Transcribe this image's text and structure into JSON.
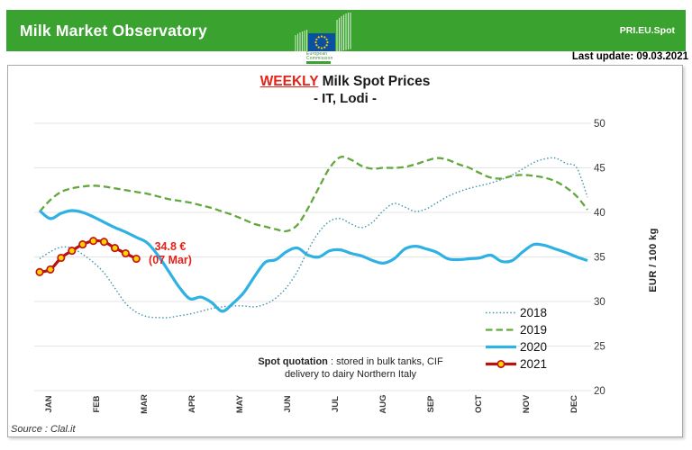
{
  "header": {
    "title": "Milk Market Observatory",
    "code_label": "PRI.EU.Spot",
    "last_update": "Last update: 09.03.2021",
    "logo": {
      "caption_line1": "European",
      "caption_line2": "Commission"
    }
  },
  "chart": {
    "title_highlight": "WEEKLY",
    "title_rest": " Milk Spot Prices",
    "subtitle": "- IT, Lodi -",
    "note": {
      "bold": "Spot quotation",
      "rest": " : stored in bulk tanks, CIF",
      "line2": "delivery to dairy Northern Italy"
    },
    "annotation": {
      "line1": "34.8 €",
      "line2": "(07 Mar)"
    },
    "y_axis_title": "EUR / 100 kg",
    "source": "Source : Clal.it"
  },
  "colors": {
    "header_bg": "#3aa32f",
    "title_red": "#e2231a",
    "annotation_red": "#e2231a",
    "grid": "#e4e4e4",
    "axis_text": "#383838",
    "eu_blue": "#0a50a1",
    "eu_star_yellow": "#ffcc00"
  },
  "chart_data": {
    "type": "line",
    "title": "WEEKLY Milk Spot Prices",
    "subtitle": "- IT, Lodi -",
    "unit": "EUR / 100 kg",
    "x_granularity": "weekly",
    "x_months": [
      "JAN",
      "FEB",
      "MAR",
      "APR",
      "MAY",
      "JUN",
      "JUL",
      "AUG",
      "SEP",
      "OCT",
      "NOV",
      "DEC"
    ],
    "ylim": [
      20,
      50
    ],
    "yticks": [
      20,
      25,
      30,
      35,
      40,
      45,
      50
    ],
    "grid": "horizontal",
    "legend_position": "middle-right",
    "series": [
      {
        "name": "2018",
        "style": "dotted",
        "color": "#4392ad",
        "values": [
          34.8,
          35.6,
          36.1,
          36.0,
          35.3,
          34.4,
          33.2,
          31.5,
          29.8,
          28.8,
          28.3,
          28.2,
          28.2,
          28.4,
          28.6,
          28.9,
          29.2,
          29.4,
          29.5,
          29.5,
          29.4,
          29.7,
          30.4,
          31.6,
          33.4,
          35.8,
          37.8,
          39.0,
          39.3,
          38.7,
          38.3,
          38.9,
          40.2,
          41.0,
          40.6,
          40.1,
          40.4,
          41.1,
          41.8,
          42.3,
          42.7,
          43.0,
          43.3,
          43.7,
          44.2,
          44.9,
          45.6,
          46.0,
          46.1,
          45.5,
          45.0,
          41.7
        ]
      },
      {
        "name": "2019",
        "style": "dashed",
        "color": "#63a83f",
        "values": [
          40.1,
          41.4,
          42.3,
          42.7,
          42.9,
          43.0,
          42.9,
          42.7,
          42.5,
          42.3,
          42.1,
          41.8,
          41.5,
          41.3,
          41.1,
          40.8,
          40.5,
          40.1,
          39.7,
          39.2,
          38.7,
          38.4,
          38.1,
          37.9,
          38.6,
          40.5,
          42.8,
          45.0,
          46.2,
          45.9,
          45.2,
          44.9,
          45.0,
          45.0,
          45.1,
          45.4,
          45.8,
          46.1,
          45.9,
          45.4,
          45.0,
          44.4,
          43.9,
          43.8,
          44.1,
          44.2,
          44.1,
          43.9,
          43.5,
          42.8,
          41.8,
          40.3
        ]
      },
      {
        "name": "2020",
        "style": "solid",
        "color": "#2fb1e3",
        "values": [
          40.2,
          39.3,
          39.9,
          40.2,
          40.0,
          39.5,
          38.9,
          38.3,
          37.8,
          37.2,
          36.6,
          35.2,
          33.4,
          31.6,
          30.3,
          30.5,
          29.9,
          28.9,
          29.8,
          31.0,
          32.8,
          34.4,
          34.7,
          35.6,
          36.0,
          35.2,
          35.0,
          35.7,
          35.8,
          35.4,
          35.1,
          34.6,
          34.3,
          34.8,
          35.9,
          36.2,
          35.9,
          35.5,
          34.8,
          34.7,
          34.8,
          34.9,
          35.2,
          34.5,
          34.6,
          35.6,
          36.4,
          36.3,
          35.9,
          35.5,
          35.0,
          34.6
        ]
      },
      {
        "name": "2021",
        "style": "solid-markers",
        "color": "#b6130f",
        "marker_fill": "#ffd400",
        "marker_stroke": "#c41414",
        "values": [
          33.3,
          33.6,
          34.9,
          35.7,
          36.4,
          36.8,
          36.7,
          36.0,
          35.4,
          34.8
        ]
      }
    ],
    "annotation": {
      "text": "34.8 €",
      "sub": "(07 Mar)",
      "attached_to": "last point of 2021 series"
    }
  }
}
